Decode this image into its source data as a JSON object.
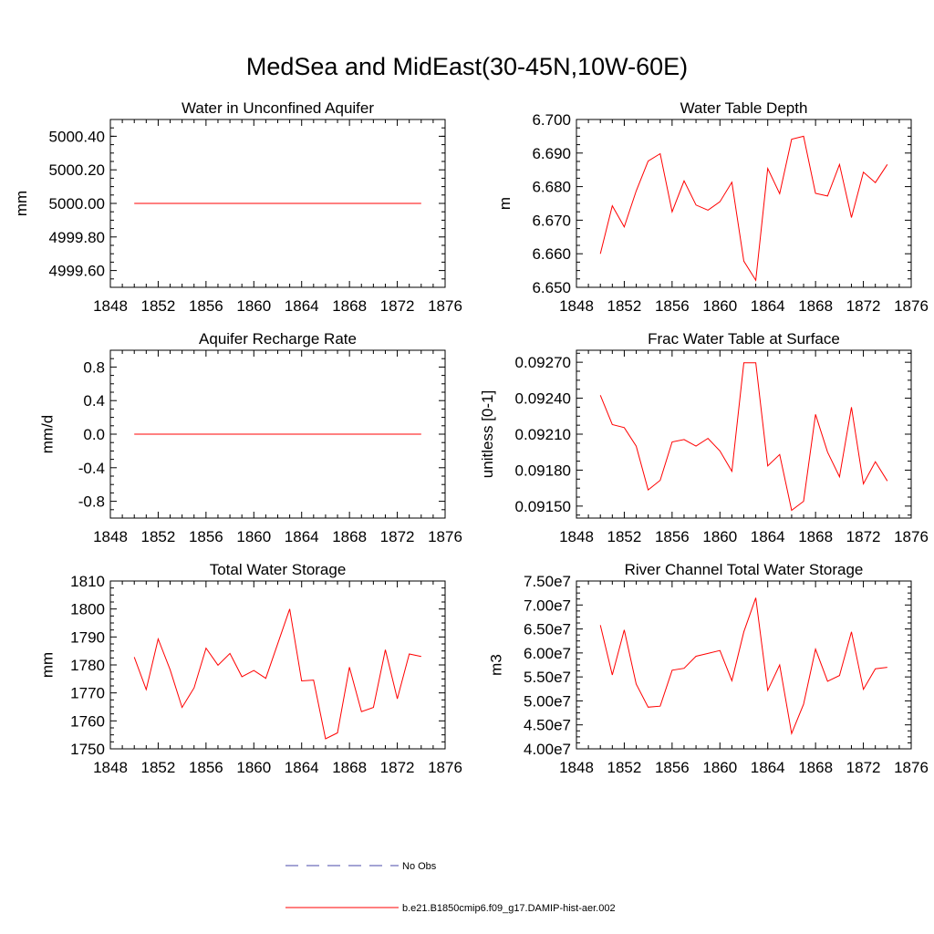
{
  "figure": {
    "title": "MedSea and MidEast(30-45N,10W-60E)",
    "legend": [
      {
        "label": "No Obs",
        "style": "dashed",
        "color": "#4a4aa8"
      },
      {
        "label": "b.e21.B1850cmip6.f09_g17.DAMIP-hist-aer.002",
        "style": "solid",
        "color": "#ff0000"
      }
    ],
    "line_color": "#ff0000"
  },
  "chart_data": [
    {
      "type": "line",
      "title": "Water in Unconfined Aquifer",
      "xlabel": "",
      "ylabel": "mm",
      "xlim": [
        1848,
        1876
      ],
      "ylim": [
        4999.5,
        5000.5
      ],
      "xticks": [
        "1848",
        "1852",
        "1856",
        "1860",
        "1864",
        "1868",
        "1872",
        "1876"
      ],
      "yticks": [
        4999.6,
        4999.8,
        5000.0,
        5000.2,
        5000.4
      ],
      "yticklabels": [
        "4999.60",
        "4999.80",
        "5000.00",
        "5000.20",
        "5000.40"
      ],
      "series": [
        {
          "name": "b.e21.B1850cmip6.f09_g17.DAMIP-hist-aer.002",
          "x": [
            1850,
            1851,
            1852,
            1853,
            1854,
            1855,
            1856,
            1857,
            1858,
            1859,
            1860,
            1861,
            1862,
            1863,
            1864,
            1865,
            1866,
            1867,
            1868,
            1869,
            1870,
            1871,
            1872,
            1873,
            1874
          ],
          "values": [
            5000,
            5000,
            5000,
            5000,
            5000,
            5000,
            5000,
            5000,
            5000,
            5000,
            5000,
            5000,
            5000,
            5000,
            5000,
            5000,
            5000,
            5000,
            5000,
            5000,
            5000,
            5000,
            5000,
            5000,
            5000
          ]
        }
      ]
    },
    {
      "type": "line",
      "title": "Water Table Depth",
      "xlabel": "",
      "ylabel": "m",
      "xlim": [
        1848,
        1876
      ],
      "ylim": [
        6.65,
        6.7
      ],
      "xticks": [
        "1848",
        "1852",
        "1856",
        "1860",
        "1864",
        "1868",
        "1872",
        "1876"
      ],
      "yticks": [
        6.65,
        6.66,
        6.67,
        6.68,
        6.69,
        6.7
      ],
      "yticklabels": [
        "6.650",
        "6.660",
        "6.670",
        "6.680",
        "6.690",
        "6.700"
      ],
      "series": [
        {
          "name": "b.e21.B1850cmip6.f09_g17.DAMIP-hist-aer.002",
          "x": [
            1850,
            1851,
            1852,
            1853,
            1854,
            1855,
            1856,
            1857,
            1858,
            1859,
            1860,
            1861,
            1862,
            1863,
            1864,
            1865,
            1866,
            1867,
            1868,
            1869,
            1870,
            1871,
            1872,
            1873,
            1874
          ],
          "values": [
            6.66,
            6.6743,
            6.668,
            6.6787,
            6.6876,
            6.6898,
            6.6725,
            6.6817,
            6.6745,
            6.673,
            6.6755,
            6.6813,
            6.6578,
            6.6521,
            6.6854,
            6.6779,
            6.6941,
            6.695,
            6.678,
            6.6772,
            6.6866,
            6.6708,
            6.6843,
            6.6812,
            6.6866
          ]
        }
      ]
    },
    {
      "type": "line",
      "title": "Aquifer Recharge Rate",
      "xlabel": "",
      "ylabel": "mm/d",
      "xlim": [
        1848,
        1876
      ],
      "ylim": [
        -1.0,
        1.0
      ],
      "xticks": [
        "1848",
        "1852",
        "1856",
        "1860",
        "1864",
        "1868",
        "1872",
        "1876"
      ],
      "yticks": [
        -0.8,
        -0.4,
        0.0,
        0.4,
        0.8
      ],
      "yticklabels": [
        "-0.8",
        "-0.4",
        "0.0",
        "0.4",
        "0.8"
      ],
      "series": [
        {
          "name": "b.e21.B1850cmip6.f09_g17.DAMIP-hist-aer.002",
          "x": [
            1850,
            1851,
            1852,
            1853,
            1854,
            1855,
            1856,
            1857,
            1858,
            1859,
            1860,
            1861,
            1862,
            1863,
            1864,
            1865,
            1866,
            1867,
            1868,
            1869,
            1870,
            1871,
            1872,
            1873,
            1874
          ],
          "values": [
            0,
            0,
            0,
            0,
            0,
            0,
            0,
            0,
            0,
            0,
            0,
            0,
            0,
            0,
            0,
            0,
            0,
            0,
            0,
            0,
            0,
            0,
            0,
            0,
            0
          ]
        }
      ]
    },
    {
      "type": "line",
      "title": "Frac Water Table at Surface",
      "xlabel": "",
      "ylabel": "unitless [0-1]",
      "xlim": [
        1848,
        1876
      ],
      "ylim": [
        0.0914,
        0.0928
      ],
      "xticks": [
        "1848",
        "1852",
        "1856",
        "1860",
        "1864",
        "1868",
        "1872",
        "1876"
      ],
      "yticks": [
        0.0915,
        0.0918,
        0.0921,
        0.0924,
        0.0927
      ],
      "yticklabels": [
        "0.09150",
        "0.09180",
        "0.09210",
        "0.09240",
        "0.09270"
      ],
      "series": [
        {
          "name": "b.e21.B1850cmip6.f09_g17.DAMIP-hist-aer.002",
          "x": [
            1850,
            1851,
            1852,
            1853,
            1854,
            1855,
            1856,
            1857,
            1858,
            1859,
            1860,
            1861,
            1862,
            1863,
            1864,
            1865,
            1866,
            1867,
            1868,
            1869,
            1870,
            1871,
            1872,
            1873,
            1874
          ],
          "values": [
            0.092425,
            0.09218,
            0.092155,
            0.092,
            0.091635,
            0.091715,
            0.092035,
            0.092055,
            0.092,
            0.092065,
            0.09196,
            0.09179,
            0.092695,
            0.092695,
            0.091835,
            0.09193,
            0.091465,
            0.09154,
            0.092265,
            0.09195,
            0.091745,
            0.092325,
            0.091685,
            0.09187,
            0.09171
          ]
        }
      ]
    },
    {
      "type": "line",
      "title": "Total Water Storage",
      "xlabel": "",
      "ylabel": "mm",
      "xlim": [
        1848,
        1876
      ],
      "ylim": [
        1750,
        1810
      ],
      "xticks": [
        "1848",
        "1852",
        "1856",
        "1860",
        "1864",
        "1868",
        "1872",
        "1876"
      ],
      "yticks": [
        1750,
        1760,
        1770,
        1780,
        1790,
        1800,
        1810
      ],
      "yticklabels": [
        "1750",
        "1760",
        "1770",
        "1780",
        "1790",
        "1800",
        "1810"
      ],
      "series": [
        {
          "name": "b.e21.B1850cmip6.f09_g17.DAMIP-hist-aer.002",
          "x": [
            1850,
            1851,
            1852,
            1853,
            1854,
            1855,
            1856,
            1857,
            1858,
            1859,
            1860,
            1861,
            1862,
            1863,
            1864,
            1865,
            1866,
            1867,
            1868,
            1869,
            1870,
            1871,
            1872,
            1873,
            1874
          ],
          "values": [
            1782.8,
            1771.2,
            1789.3,
            1778.3,
            1764.8,
            1771.8,
            1786,
            1779.9,
            1784.1,
            1775.8,
            1778,
            1775.2,
            1787.6,
            1800,
            1774.3,
            1774.6,
            1753.6,
            1755.7,
            1779.2,
            1763.3,
            1764.8,
            1785.4,
            1767.9,
            1783.9,
            1783
          ]
        }
      ]
    },
    {
      "type": "line",
      "title": "River Channel Total Water Storage",
      "xlabel": "",
      "ylabel": "m3",
      "xlim": [
        1848,
        1876
      ],
      "ylim": [
        40000000,
        75000000
      ],
      "xticks": [
        "1848",
        "1852",
        "1856",
        "1860",
        "1864",
        "1868",
        "1872",
        "1876"
      ],
      "yticks": [
        40000000,
        45000000,
        50000000,
        55000000,
        60000000,
        65000000,
        70000000,
        75000000
      ],
      "yticklabels": [
        "4.00e7",
        "4.50e7",
        "5.00e7",
        "5.50e7",
        "6.00e7",
        "6.50e7",
        "7.00e7",
        "7.50e7"
      ],
      "series": [
        {
          "name": "b.e21.B1850cmip6.f09_g17.DAMIP-hist-aer.002",
          "x": [
            1850,
            1851,
            1852,
            1853,
            1854,
            1855,
            1856,
            1857,
            1858,
            1859,
            1860,
            1861,
            1862,
            1863,
            1864,
            1865,
            1866,
            1867,
            1868,
            1869,
            1870,
            1871,
            1872,
            1873,
            1874
          ],
          "values": [
            65800000,
            55400000,
            64800000,
            53500000,
            48700000,
            48900000,
            56400000,
            56800000,
            59300000,
            59900000,
            60500000,
            54200000,
            64400000,
            71500000,
            52200000,
            57500000,
            43200000,
            49300000,
            60800000,
            54100000,
            55300000,
            64400000,
            52400000,
            56700000,
            57000000
          ]
        }
      ]
    }
  ]
}
